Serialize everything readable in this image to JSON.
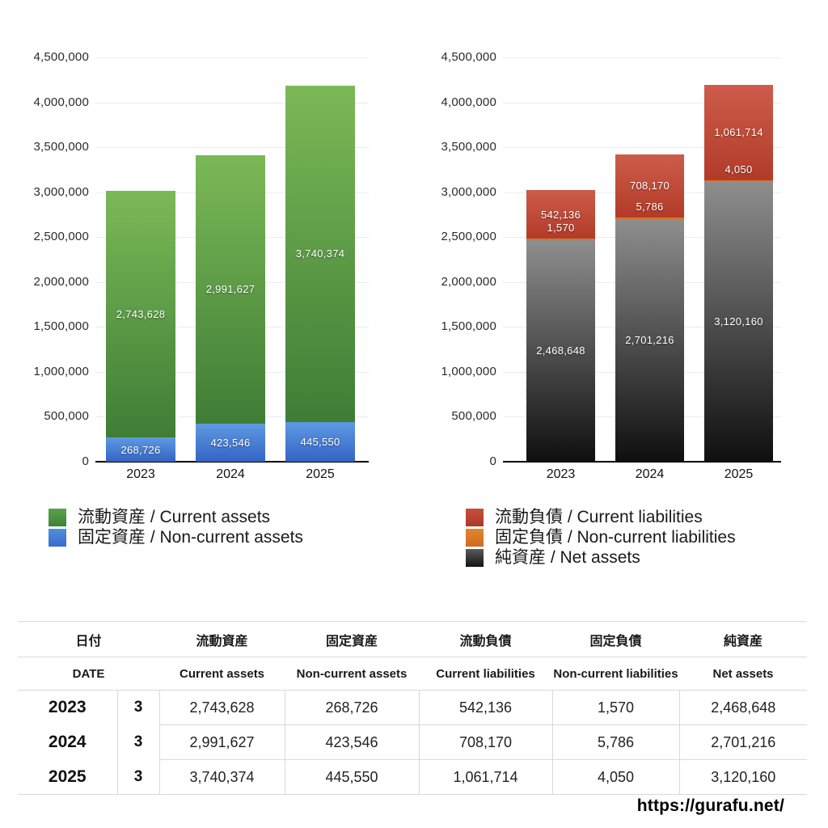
{
  "page": {
    "background": "#ffffff",
    "source_url": "https://gurafu.net/"
  },
  "chart_data": [
    {
      "type": "bar",
      "stacked": true,
      "title": "",
      "xlabel": "",
      "ylabel": "",
      "categories": [
        "2023",
        "2024",
        "2025"
      ],
      "series": [
        {
          "name": "固定資産 / Non-current assets",
          "key": "non-current-assets",
          "values": [
            268726,
            423546,
            445550
          ],
          "labels": [
            "268,726",
            "423,546",
            "445,550"
          ],
          "color_top": "#5e9ae2",
          "color_bottom": "#3464c4"
        },
        {
          "name": "流動資産 / Current assets",
          "key": "current-assets",
          "values": [
            2743628,
            2991627,
            3740374
          ],
          "labels": [
            "2,743,628",
            "2,991,627",
            "3,740,374"
          ],
          "color_top": "#7bb957",
          "color_bottom": "#3f7d36"
        }
      ],
      "ylim": [
        0,
        4500000
      ],
      "y_tick_step": 500000,
      "y_ticks": [
        "0",
        "500,000",
        "1,000,000",
        "1,500,000",
        "2,000,000",
        "2,500,000",
        "3,000,000",
        "3,500,000",
        "4,000,000",
        "4,500,000"
      ],
      "grid": true,
      "legend_position": "bottom",
      "legend": [
        {
          "label": "流動資産 / Current assets",
          "key": "current-assets",
          "color_top": "#5aa34a",
          "color_bottom": "#3d8334"
        },
        {
          "label": "固定資産 / Non-current assets",
          "key": "non-current-assets",
          "color_top": "#4f8fdd",
          "color_bottom": "#3a6cc8"
        }
      ]
    },
    {
      "type": "bar",
      "stacked": true,
      "title": "",
      "xlabel": "",
      "ylabel": "",
      "categories": [
        "2023",
        "2024",
        "2025"
      ],
      "series": [
        {
          "name": "純資産 / Net assets",
          "key": "net-assets",
          "values": [
            2468648,
            2701216,
            3120160
          ],
          "labels": [
            "2,468,648",
            "2,701,216",
            "3,120,160"
          ],
          "color_top": "#8e8e8e",
          "color_bottom": "#0f0f0f"
        },
        {
          "name": "固定負債 / Non-current liabilities",
          "key": "non-current-liabilities",
          "values": [
            1570,
            5786,
            4050
          ],
          "labels": [
            "1,570",
            "5,786",
            "4,050"
          ],
          "color_top": "#e08030",
          "color_bottom": "#d06a1e"
        },
        {
          "name": "流動負債 / Current liabilities",
          "key": "current-liabilities",
          "values": [
            542136,
            708170,
            1061714
          ],
          "labels": [
            "542,136",
            "708,170",
            "1,061,714"
          ],
          "color_top": "#cd5c4b",
          "color_bottom": "#b23b28"
        }
      ],
      "ylim": [
        0,
        4500000
      ],
      "y_tick_step": 500000,
      "y_ticks": [
        "0",
        "500,000",
        "1,000,000",
        "1,500,000",
        "2,000,000",
        "2,500,000",
        "3,000,000",
        "3,500,000",
        "4,000,000",
        "4,500,000"
      ],
      "grid": true,
      "legend_position": "bottom",
      "legend": [
        {
          "label": "流動負債 / Current liabilities",
          "key": "current-liabilities",
          "color_top": "#c8503c",
          "color_bottom": "#a93a28"
        },
        {
          "label": "固定負債 / Non-current liabilities",
          "key": "non-current-liabilities",
          "color_top": "#e2862e",
          "color_bottom": "#d06a1e"
        },
        {
          "label": "純資産 / Net assets",
          "key": "net-assets",
          "color_top": "#5a5a5a",
          "color_bottom": "#141414"
        }
      ]
    }
  ],
  "table": {
    "header_ja": [
      "日付",
      "流動資産",
      "固定資産",
      "流動負債",
      "固定負債",
      "純資産"
    ],
    "header_en": [
      "DATE",
      "Current assets",
      "Non-current assets",
      "Current liabilities",
      "Non-current liabilities",
      "Net assets"
    ],
    "rows": [
      {
        "year": "2023",
        "month": "3",
        "values": [
          "2,743,628",
          "268,726",
          "542,136",
          "1,570",
          "2,468,648"
        ]
      },
      {
        "year": "2024",
        "month": "3",
        "values": [
          "2,991,627",
          "423,546",
          "708,170",
          "5,786",
          "2,701,216"
        ]
      },
      {
        "year": "2025",
        "month": "3",
        "values": [
          "3,740,374",
          "445,550",
          "1,061,714",
          "4,050",
          "3,120,160"
        ]
      }
    ]
  }
}
